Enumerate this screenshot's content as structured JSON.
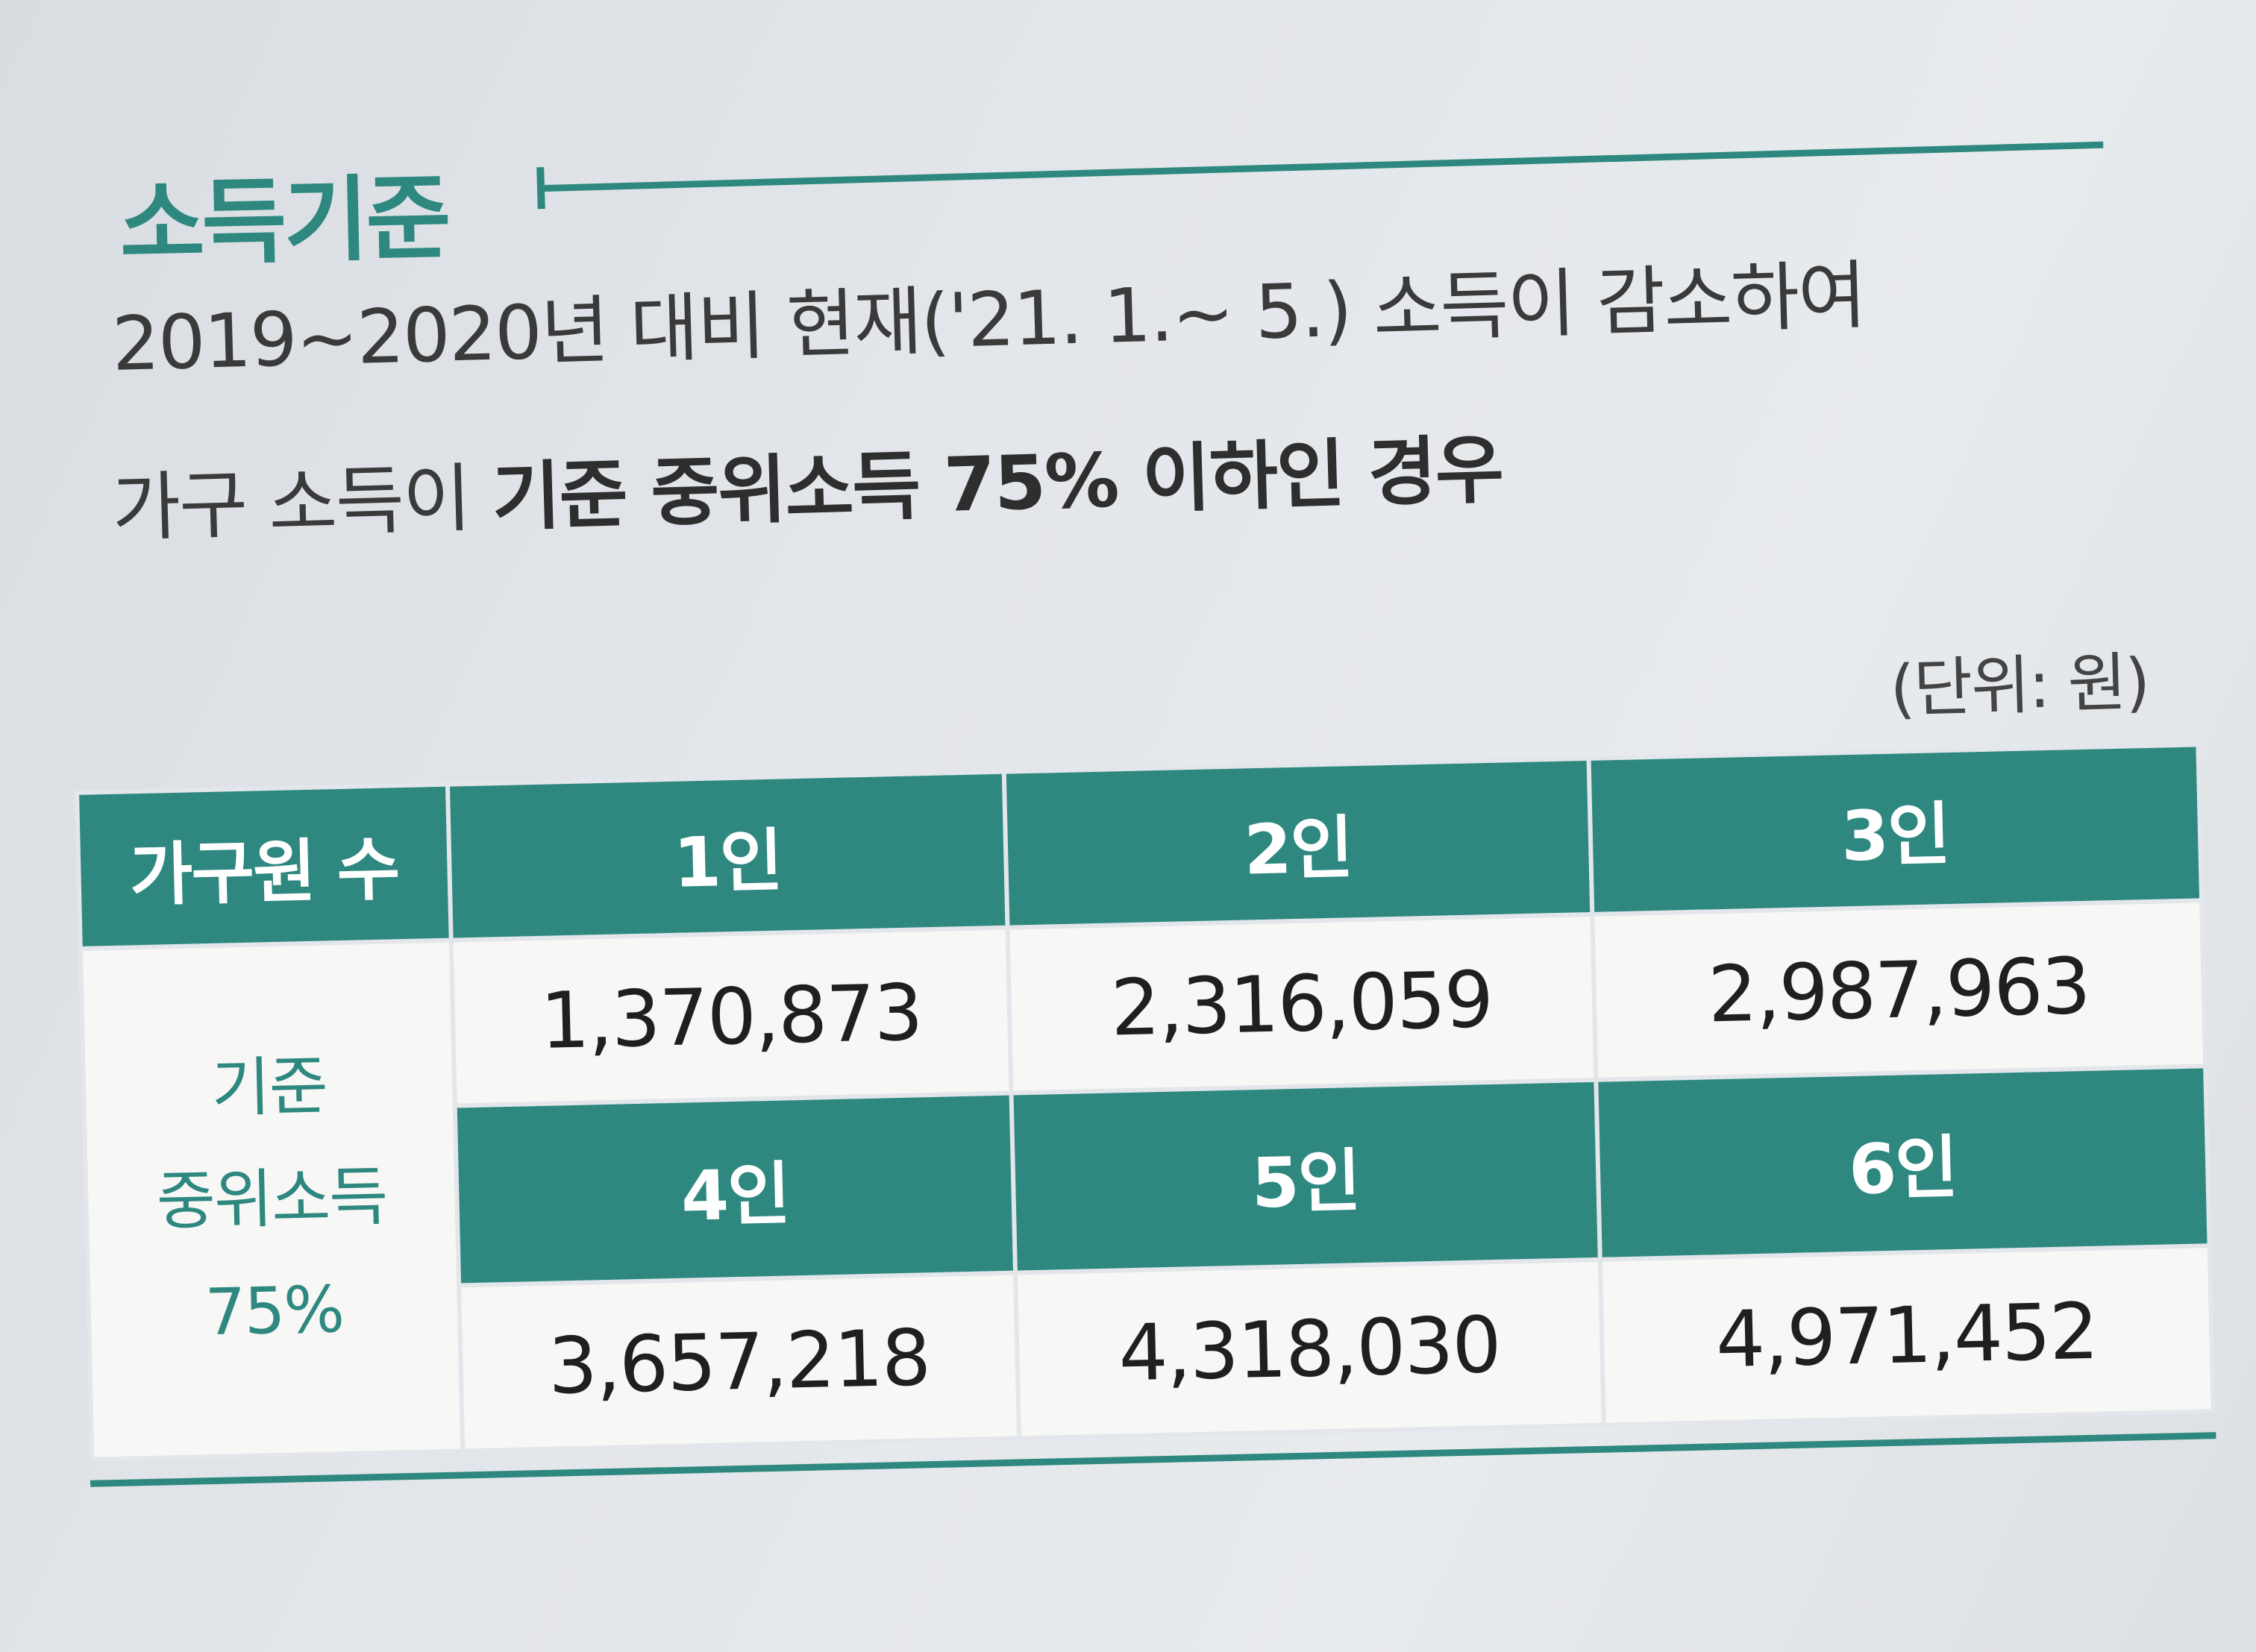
{
  "section_title": "소득기준",
  "description": {
    "line1": "2019~2020년 대비 현재('21. 1.~ 5.) 소득이 감소하여",
    "line2_plain": "가구 소득이 ",
    "line2_bold": "기준 중위소득 75% 이하인 경우"
  },
  "unit_note": "(단위: 원)",
  "table": {
    "header_label": "가구원 수",
    "row_label_lines": [
      "기준",
      "중위소득",
      "75%"
    ],
    "groups": [
      {
        "headers": [
          "1인",
          "2인",
          "3인"
        ],
        "values": [
          "1,370,873",
          "2,316,059",
          "2,987,963"
        ]
      },
      {
        "headers": [
          "4인",
          "5인",
          "6인"
        ],
        "values": [
          "3,657,218",
          "4,318,030",
          "4,971,452"
        ]
      }
    ]
  },
  "colors": {
    "accent": "#2e8880",
    "cell_bg": "#f7f7f5",
    "page_bg": "#e3e6ea"
  }
}
